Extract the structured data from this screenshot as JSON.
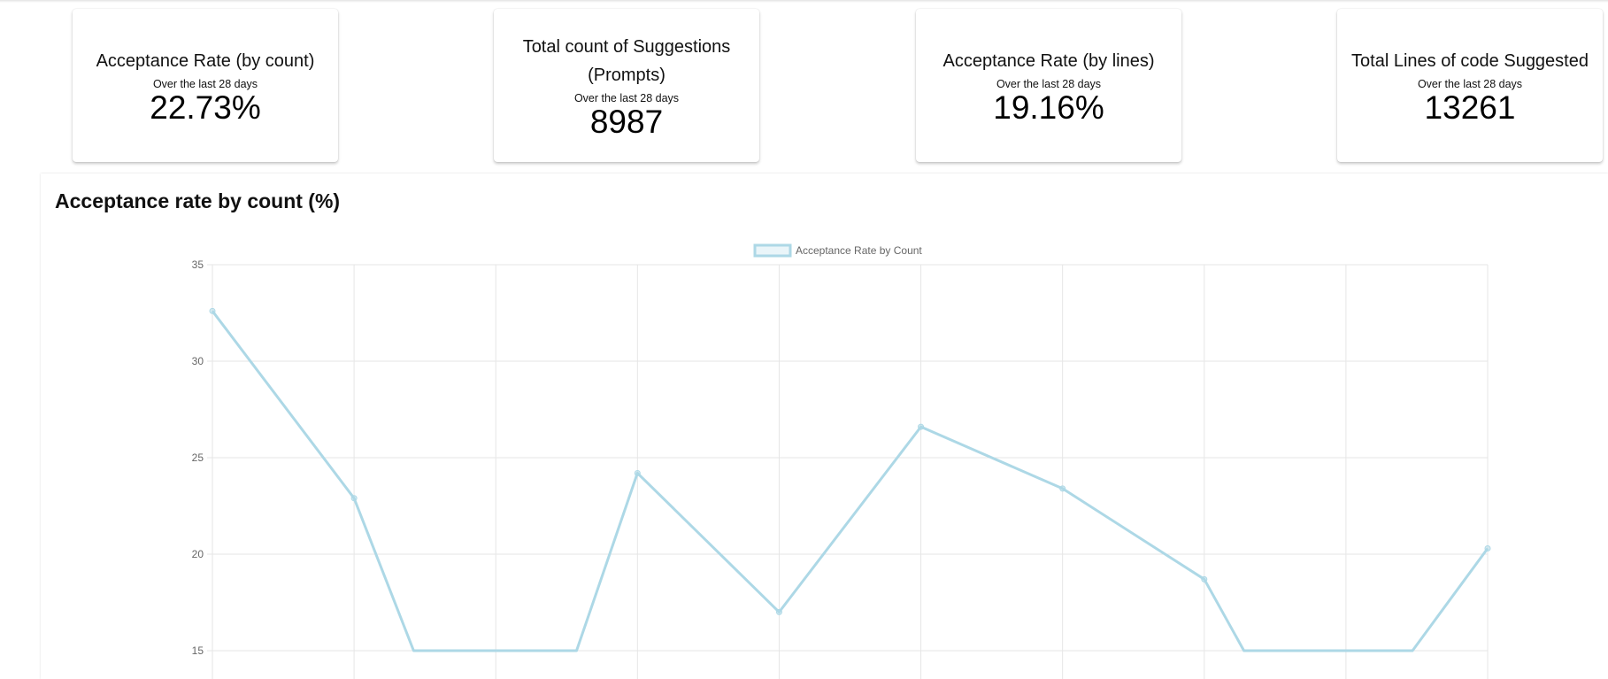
{
  "cards": [
    {
      "title": "Acceptance Rate (by count)",
      "subtitle": "Over the last 28 days",
      "value": "22.73%"
    },
    {
      "title": "Total count of Suggestions (Prompts)",
      "subtitle": "Over the last 28 days",
      "value": "8987"
    },
    {
      "title": "Acceptance Rate (by lines)",
      "subtitle": "Over the last 28 days",
      "value": "19.16%"
    },
    {
      "title": "Total Lines of code Suggested",
      "subtitle": "Over the last 28 days",
      "value": "13261"
    }
  ],
  "chart_section": {
    "title": "Acceptance rate by count (%)"
  },
  "chart_data": {
    "type": "line",
    "title": "",
    "legend": [
      {
        "name": "Acceptance Rate by Count",
        "color": "#add8e6"
      }
    ],
    "legend_position": "top-center",
    "grid": true,
    "ylim": [
      15,
      35
    ],
    "y_ticks": [
      "35",
      "30",
      "25",
      "20",
      "15"
    ],
    "series": [
      {
        "name": "Acceptance Rate by Count",
        "color": "#add8e6",
        "x": [
          0,
          1,
          1.42,
          2.57,
          3,
          4,
          5,
          6,
          7,
          7.28,
          8.47,
          9
        ],
        "values": [
          32.6,
          22.9,
          15.0,
          15.0,
          24.2,
          17.0,
          26.6,
          23.4,
          18.7,
          15.0,
          15.0,
          20.3
        ]
      }
    ],
    "x_points": 10
  }
}
